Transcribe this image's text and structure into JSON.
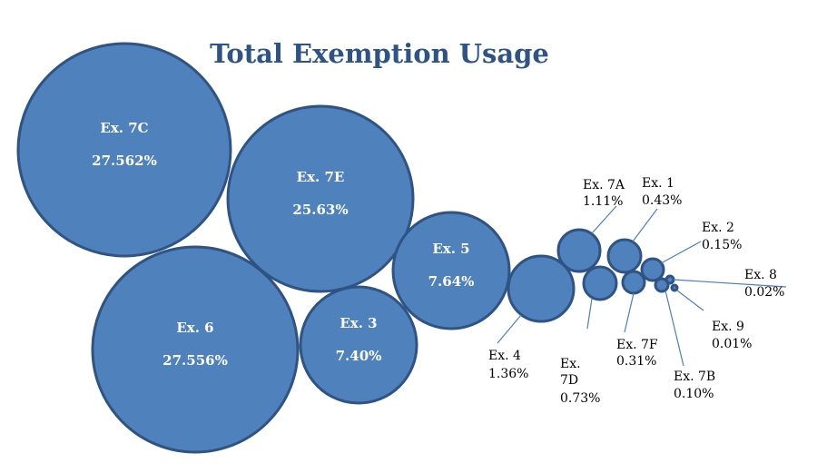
{
  "chart_data": {
    "type": "bubble",
    "title": "Total Exemption Usage",
    "colors": {
      "fill": "#4f81bd",
      "stroke": "#2f5383",
      "title": "#2e5487",
      "leader": "#4a7fbd"
    },
    "items": [
      {
        "name": "Ex. 7C",
        "value": 27.562,
        "label": "27.562%"
      },
      {
        "name": "Ex. 6",
        "value": 27.556,
        "label": "27.556%"
      },
      {
        "name": "Ex. 7E",
        "value": 25.63,
        "label": "25.63%"
      },
      {
        "name": "Ex. 5",
        "value": 7.64,
        "label": "7.64%"
      },
      {
        "name": "Ex. 3",
        "value": 7.4,
        "label": "7.40%"
      },
      {
        "name": "Ex. 4",
        "value": 1.36,
        "label": "1.36%"
      },
      {
        "name": "Ex. 7A",
        "value": 1.11,
        "label": "1.11%"
      },
      {
        "name": "Ex. 7D",
        "value": 0.73,
        "label": "0.73%"
      },
      {
        "name": "Ex. 1",
        "value": 0.43,
        "label": "0.43%"
      },
      {
        "name": "Ex. 7F",
        "value": 0.31,
        "label": "0.31%"
      },
      {
        "name": "Ex. 2",
        "value": 0.15,
        "label": "0.15%"
      },
      {
        "name": "Ex. 7B",
        "value": 0.1,
        "label": "0.10%"
      },
      {
        "name": "Ex. 8",
        "value": 0.02,
        "label": "0.02%"
      },
      {
        "name": "Ex. 9",
        "value": 0.01,
        "label": "0.01%"
      }
    ]
  }
}
